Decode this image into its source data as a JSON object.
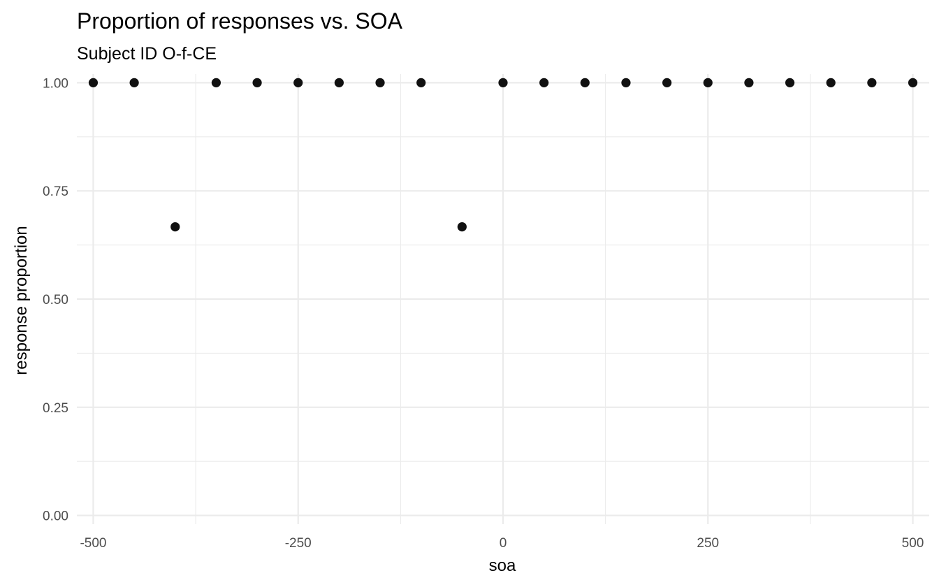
{
  "chart_data": {
    "type": "scatter",
    "title": "Proportion of responses vs. SOA",
    "subtitle": "Subject ID O-f-CE",
    "xlabel": "soa",
    "ylabel": "response proportion",
    "xlim": [
      -520,
      520
    ],
    "ylim": [
      -0.02,
      1.02
    ],
    "x_ticks": [
      -500,
      -250,
      0,
      250,
      500
    ],
    "x_tick_labels": [
      "-500",
      "-250",
      "0",
      "250",
      "500"
    ],
    "x_minor_ticks": [
      -375,
      -125,
      125,
      375
    ],
    "y_ticks": [
      0,
      0.25,
      0.5,
      0.75,
      1.0
    ],
    "y_tick_labels": [
      "0.00",
      "0.25",
      "0.50",
      "0.75",
      "1.00"
    ],
    "y_minor_ticks": [
      0.125,
      0.375,
      0.625,
      0.875
    ],
    "grid": true,
    "legend": "none",
    "point_color": "#111111",
    "points": [
      {
        "x": -500,
        "y": 1.0
      },
      {
        "x": -450,
        "y": 1.0
      },
      {
        "x": -400,
        "y": 0.667
      },
      {
        "x": -350,
        "y": 1.0
      },
      {
        "x": -300,
        "y": 1.0
      },
      {
        "x": -250,
        "y": 1.0
      },
      {
        "x": -200,
        "y": 1.0
      },
      {
        "x": -150,
        "y": 1.0
      },
      {
        "x": -100,
        "y": 1.0
      },
      {
        "x": -50,
        "y": 0.667
      },
      {
        "x": 0,
        "y": 1.0
      },
      {
        "x": 50,
        "y": 1.0
      },
      {
        "x": 100,
        "y": 1.0
      },
      {
        "x": 150,
        "y": 1.0
      },
      {
        "x": 200,
        "y": 1.0
      },
      {
        "x": 250,
        "y": 1.0
      },
      {
        "x": 300,
        "y": 1.0
      },
      {
        "x": 350,
        "y": 1.0
      },
      {
        "x": 400,
        "y": 1.0
      },
      {
        "x": 450,
        "y": 1.0
      },
      {
        "x": 500,
        "y": 1.0
      }
    ]
  }
}
